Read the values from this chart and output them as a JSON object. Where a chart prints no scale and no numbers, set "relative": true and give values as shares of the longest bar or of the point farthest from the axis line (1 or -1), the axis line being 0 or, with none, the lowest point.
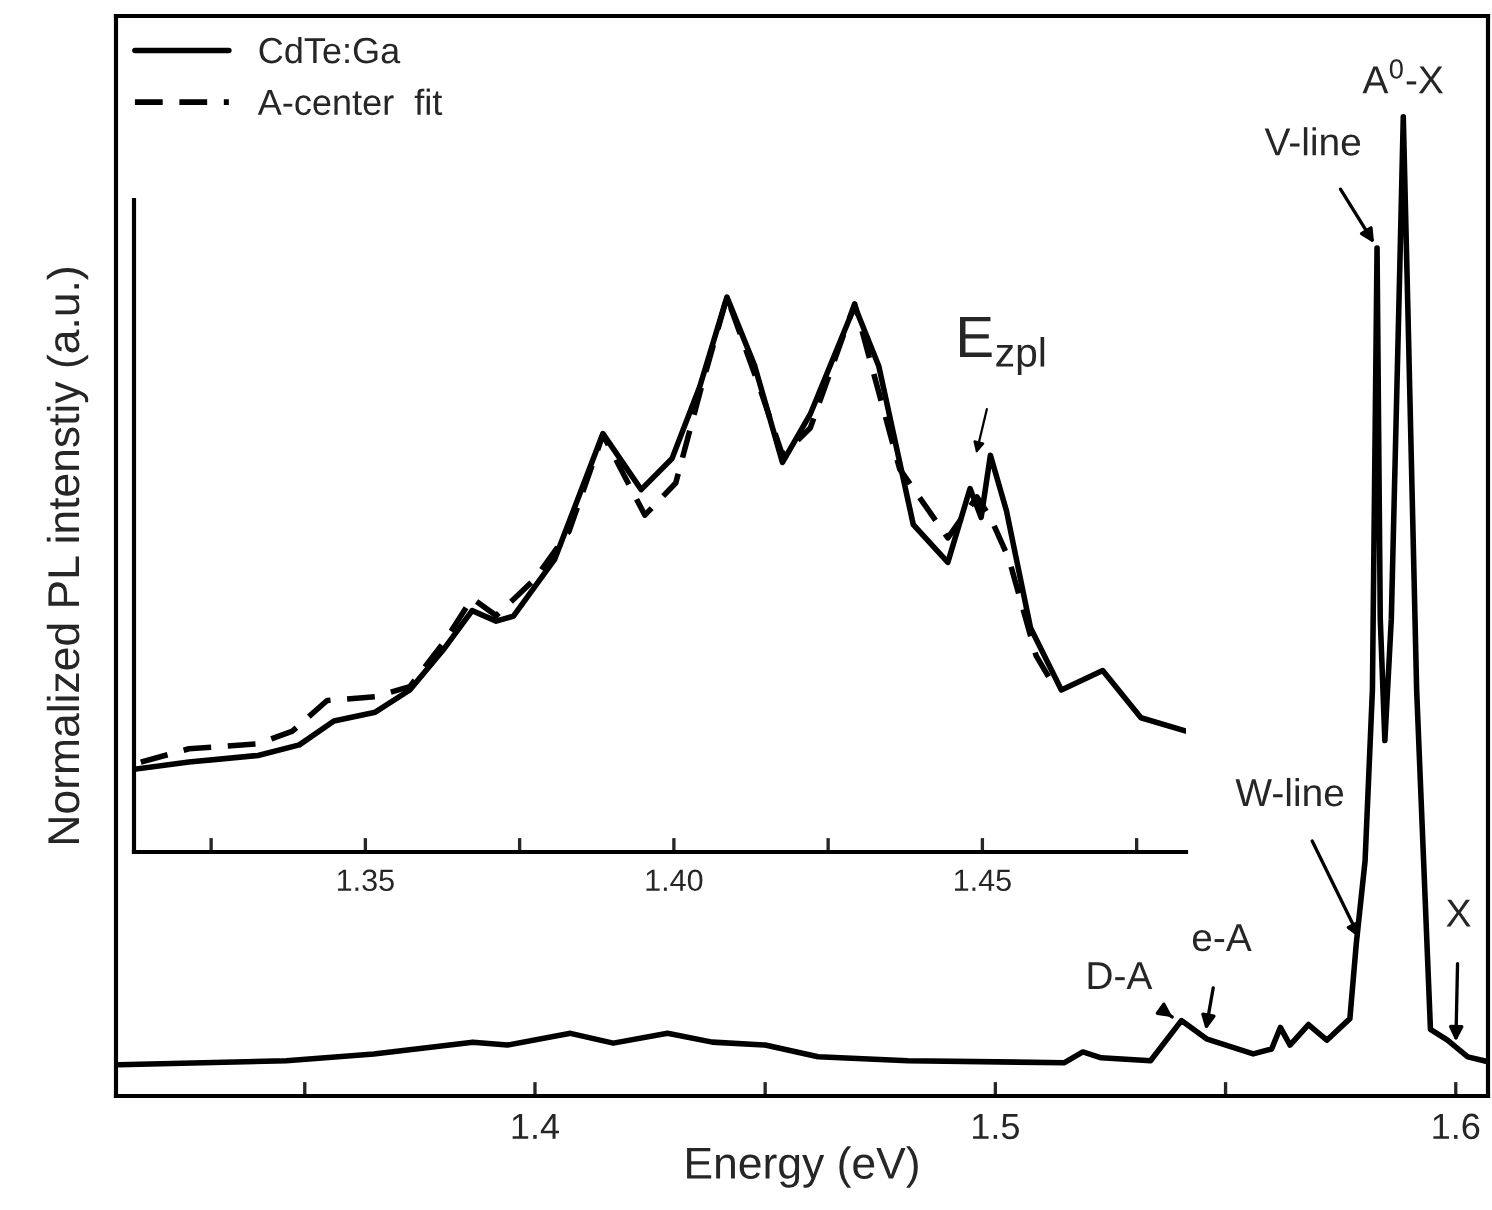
{
  "chart_data": [
    {
      "type": "line",
      "relative": true,
      "xlabel": "Energy (eV)",
      "ylabel": "Normalized PL intenstiy (a.u.)",
      "xlim": [
        1.309,
        1.607
      ],
      "xticks": [
        {
          "value": 1.35,
          "label": null
        },
        1.4,
        {
          "value": 1.45,
          "label": null
        },
        1.5,
        {
          "value": 1.55,
          "label": null
        },
        1.6
      ],
      "tick_labels": "x",
      "legend": false,
      "line_style": "solid",
      "marker": "none",
      "series": [
        {
          "color": "#000000",
          "x": [
            1.3096,
            1.346,
            1.365,
            1.3865,
            1.394,
            1.4077,
            1.417,
            1.4288,
            1.4385,
            1.45,
            1.4615,
            1.481,
            1.515,
            1.519,
            1.523,
            1.5337,
            1.5404,
            1.546,
            1.556,
            1.56,
            1.5619,
            1.564,
            1.568,
            1.572,
            1.577,
            1.5784,
            1.5803,
            1.5819,
            1.5829,
            1.5836,
            1.5846,
            1.586,
            1.5878,
            1.5886,
            1.5896,
            1.5915,
            1.5945,
            1.5982,
            1.6026,
            1.607
          ],
          "values": [
            0.032,
            0.036,
            0.043,
            0.055,
            0.052,
            0.064,
            0.054,
            0.064,
            0.055,
            0.052,
            0.04,
            0.036,
            0.034,
            0.045,
            0.039,
            0.036,
            0.077,
            0.058,
            0.043,
            0.048,
            0.07,
            0.052,
            0.073,
            0.057,
            0.079,
            0.156,
            0.24,
            0.415,
            0.866,
            0.487,
            0.363,
            0.487,
            0.838,
            1.0,
            0.803,
            0.415,
            0.068,
            0.057,
            0.04,
            0.035
          ]
        }
      ],
      "annotations": [
        {
          "text": "A$^{0}$-X",
          "x": 1.5886,
          "y": 1.0
        },
        {
          "text": "V-line",
          "x": 1.5829,
          "y": 0.866
        },
        {
          "text": "W-line",
          "x": 1.5797,
          "y": 0.156
        },
        {
          "text": "D-A",
          "x": 1.5395,
          "y": 0.077
        },
        {
          "text": "e-A",
          "x": 1.5455,
          "y": 0.062
        },
        {
          "text": "X",
          "x": 1.6,
          "y": 0.05
        }
      ]
    },
    {
      "type": "line",
      "relative": true,
      "xlim": [
        1.3125,
        1.483
      ],
      "xticks": [
        {
          "value": 1.325,
          "label": null
        },
        {
          "value": 1.35,
          "label": "1.35"
        },
        {
          "value": 1.375,
          "label": null
        },
        {
          "value": 1.4,
          "label": "1.40"
        },
        {
          "value": 1.425,
          "label": null
        },
        {
          "value": 1.45,
          "label": "1.45"
        },
        {
          "value": 1.475,
          "label": null
        }
      ],
      "tick_labels": "x",
      "legend": "top left",
      "marker": "none",
      "series": [
        {
          "name": "CdTe:Ga",
          "color": "#000000",
          "line_style": "solid",
          "x": [
            1.3125,
            1.3214,
            1.3326,
            1.3393,
            1.3449,
            1.3516,
            1.3572,
            1.3628,
            1.3673,
            1.3712,
            1.374,
            1.3807,
            1.3885,
            1.3947,
            1.3997,
            1.4042,
            1.4086,
            1.4131,
            1.4176,
            1.4221,
            1.4293,
            1.4332,
            1.4388,
            1.4444,
            1.448,
            1.4498,
            1.4513,
            1.4539,
            1.4578,
            1.4628,
            1.4695,
            1.4757,
            1.483
          ],
          "values": [
            0.149,
            0.162,
            0.174,
            0.193,
            0.236,
            0.252,
            0.292,
            0.367,
            0.435,
            0.416,
            0.425,
            0.528,
            0.754,
            0.653,
            0.709,
            0.839,
            1.0,
            0.876,
            0.702,
            0.789,
            0.984,
            0.876,
            0.59,
            0.522,
            0.655,
            0.603,
            0.715,
            0.615,
            0.404,
            0.292,
            0.327,
            0.242,
            0.218
          ]
        },
        {
          "name": "A-center  fit",
          "color": "#000000",
          "line_style": "dashed",
          "x": [
            1.3136,
            1.3214,
            1.3326,
            1.3382,
            1.3438,
            1.3516,
            1.3572,
            1.3628,
            1.3673,
            1.3712,
            1.3774,
            1.383,
            1.3885,
            1.3953,
            1.4003,
            1.4042,
            1.4086,
            1.4142,
            1.4176,
            1.4221,
            1.4293,
            1.4366,
            1.4444,
            1.4491,
            1.4513,
            1.4543,
            1.4587,
            1.462
          ],
          "values": [
            0.162,
            0.186,
            0.195,
            0.218,
            0.273,
            0.28,
            0.298,
            0.379,
            0.457,
            0.426,
            0.491,
            0.578,
            0.752,
            0.607,
            0.665,
            0.827,
            1.0,
            0.827,
            0.715,
            0.764,
            0.988,
            0.69,
            0.566,
            0.64,
            0.603,
            0.528,
            0.354,
            0.292
          ]
        }
      ],
      "annotations": [
        "E$_{zpl}$"
      ]
    }
  ]
}
